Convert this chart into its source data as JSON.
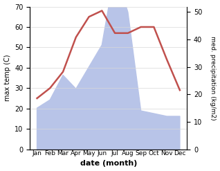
{
  "months": [
    "Jan",
    "Feb",
    "Mar",
    "Apr",
    "May",
    "Jun",
    "Jul",
    "Aug",
    "Sep",
    "Oct",
    "Nov",
    "Dec"
  ],
  "temperature": [
    25,
    30,
    38,
    55,
    65,
    68,
    57,
    57,
    60,
    60,
    44,
    29
  ],
  "precipitation": [
    15,
    18,
    27,
    22,
    30,
    38,
    65,
    50,
    14,
    13,
    12,
    12
  ],
  "temp_color": "#c0504d",
  "precip_fill_color": "#b8c4e8",
  "temp_ylim": [
    0,
    70
  ],
  "precip_ylim": [
    0,
    52
  ],
  "temp_yticks": [
    0,
    10,
    20,
    30,
    40,
    50,
    60,
    70
  ],
  "precip_yticks": [
    0,
    10,
    20,
    30,
    40,
    50
  ],
  "xlabel": "date (month)",
  "ylabel_left": "max temp (C)",
  "ylabel_right": "med. precipitation (kg/m2)",
  "background_color": "#ffffff",
  "grid_color": "#d8d8d8"
}
